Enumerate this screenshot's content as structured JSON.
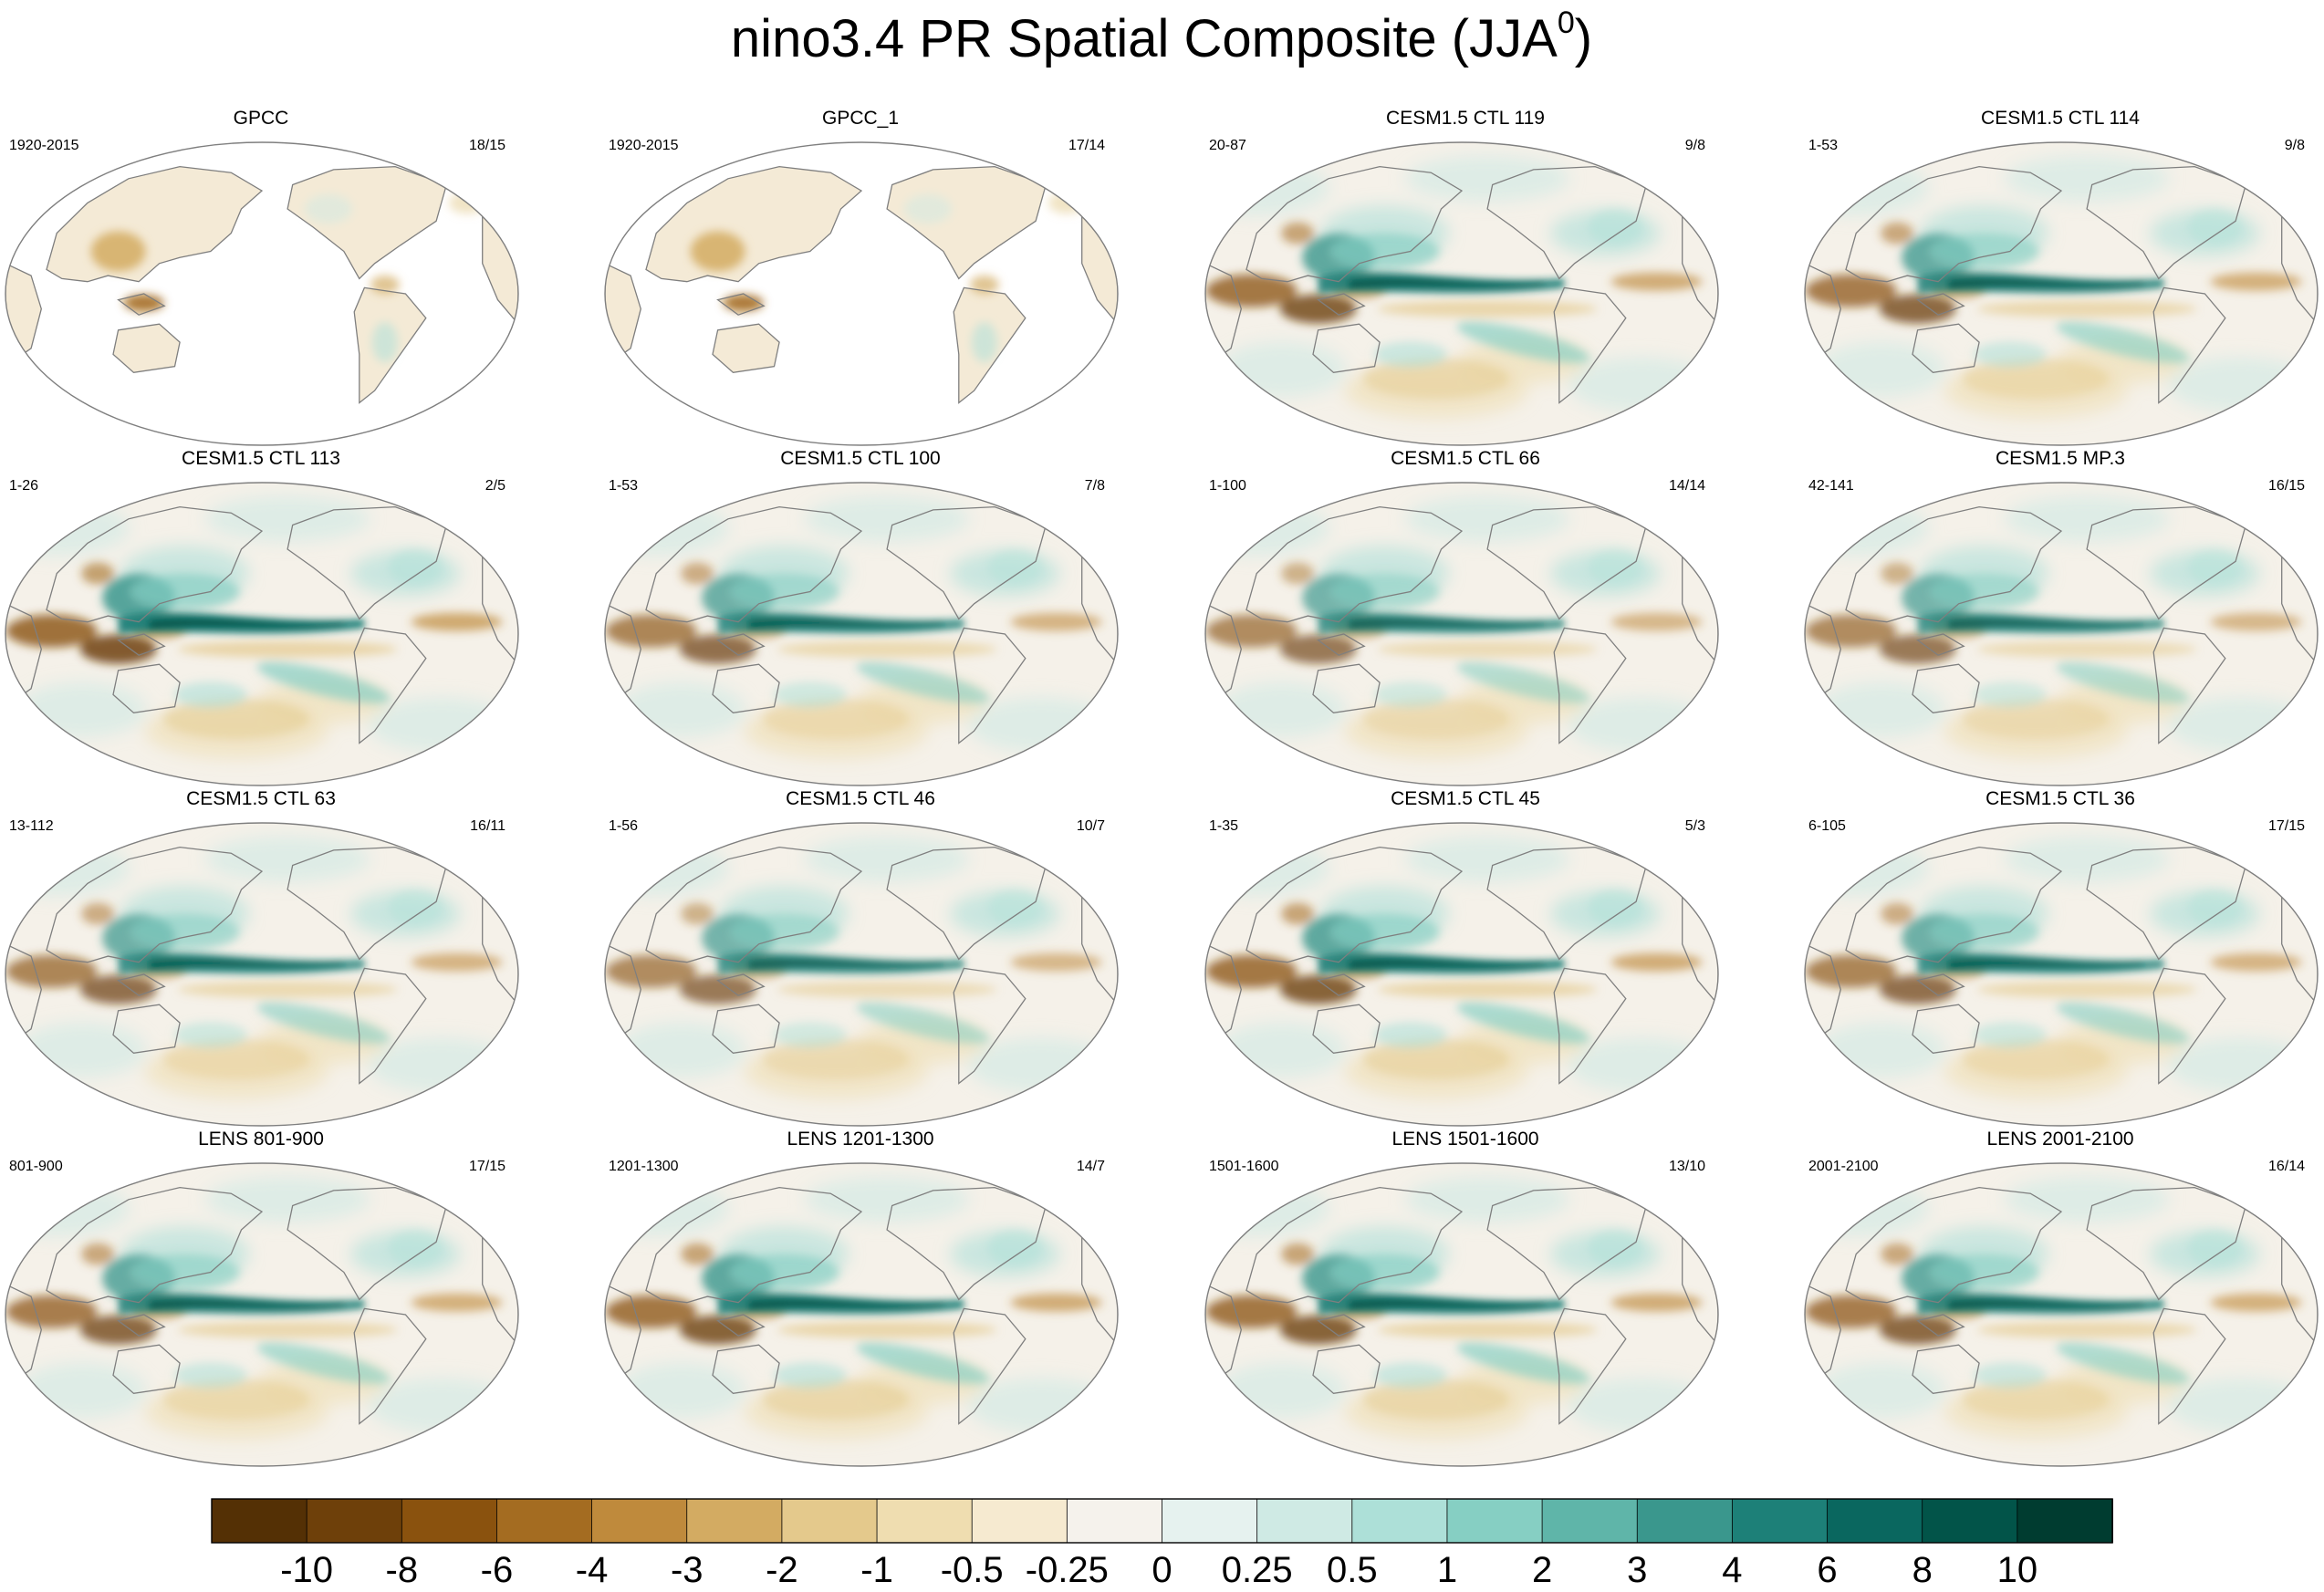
{
  "figure": {
    "title": "nino3.4 PR Spatial Composite (JJA",
    "title_sup": "0",
    "title_close": ")"
  },
  "map_style": {
    "land_outline_color": "#7f7f7f",
    "frame_color": "#7f7f7f",
    "ocean_base_color": "#f5f1e9",
    "missing_color": "#ffffff"
  },
  "panels": [
    {
      "title": "GPCC",
      "left": "1920-2015",
      "right": "18/15",
      "land_only": true,
      "intensity": 0.45
    },
    {
      "title": "GPCC_1",
      "left": "1920-2015",
      "right": "17/14",
      "land_only": true,
      "intensity": 0.4
    },
    {
      "title": "CESM1.5 CTL 119",
      "left": "20-87",
      "right": "9/8",
      "land_only": false,
      "intensity": 0.95
    },
    {
      "title": "CESM1.5 CTL 114",
      "left": "1-53",
      "right": "9/8",
      "land_only": false,
      "intensity": 0.9
    },
    {
      "title": "CESM1.5 CTL 113",
      "left": "1-26",
      "right": "2/5",
      "land_only": false,
      "intensity": 1.0
    },
    {
      "title": "CESM1.5 CTL 100",
      "left": "1-53",
      "right": "7/8",
      "land_only": false,
      "intensity": 0.85
    },
    {
      "title": "CESM1.5 CTL 66",
      "left": "1-100",
      "right": "14/14",
      "land_only": false,
      "intensity": 0.8
    },
    {
      "title": "CESM1.5 MP.3",
      "left": "42-141",
      "right": "16/15",
      "land_only": false,
      "intensity": 0.8
    },
    {
      "title": "CESM1.5 CTL 63",
      "left": "13-112",
      "right": "16/11",
      "land_only": false,
      "intensity": 0.85
    },
    {
      "title": "CESM1.5 CTL 46",
      "left": "1-56",
      "right": "10/7",
      "land_only": false,
      "intensity": 0.8
    },
    {
      "title": "CESM1.5 CTL 45",
      "left": "1-35",
      "right": "5/3",
      "land_only": false,
      "intensity": 0.95
    },
    {
      "title": "CESM1.5 CTL 36",
      "left": "6-105",
      "right": "17/15",
      "land_only": false,
      "intensity": 0.85
    },
    {
      "title": "LENS 801-900",
      "left": "801-900",
      "right": "17/15",
      "land_only": false,
      "intensity": 0.9
    },
    {
      "title": "LENS 1201-1300",
      "left": "1201-1300",
      "right": "14/7",
      "land_only": false,
      "intensity": 0.95
    },
    {
      "title": "LENS 1501-1600",
      "left": "1501-1600",
      "right": "13/10",
      "land_only": false,
      "intensity": 0.95
    },
    {
      "title": "LENS 2001-2100",
      "left": "2001-2100",
      "right": "16/14",
      "land_only": false,
      "intensity": 0.9
    }
  ],
  "colorbar": {
    "labels": [
      "-10",
      "-8",
      "-6",
      "-4",
      "-3",
      "-2",
      "-1",
      "-0.5",
      "-0.25",
      "0",
      "0.25",
      "0.5",
      "1",
      "2",
      "3",
      "4",
      "6",
      "8",
      "10"
    ],
    "colors": [
      "#543005",
      "#6e400a",
      "#8a520e",
      "#a46c21",
      "#bf8a3c",
      "#d3ab62",
      "#e4c98c",
      "#efddb0",
      "#f6ead0",
      "#f5f2ec",
      "#e6f2ef",
      "#cfeae4",
      "#ade0d8",
      "#86cfc3",
      "#5fb5a9",
      "#3a978d",
      "#1d8078",
      "#0a675f",
      "#025449",
      "#003c30"
    ]
  }
}
